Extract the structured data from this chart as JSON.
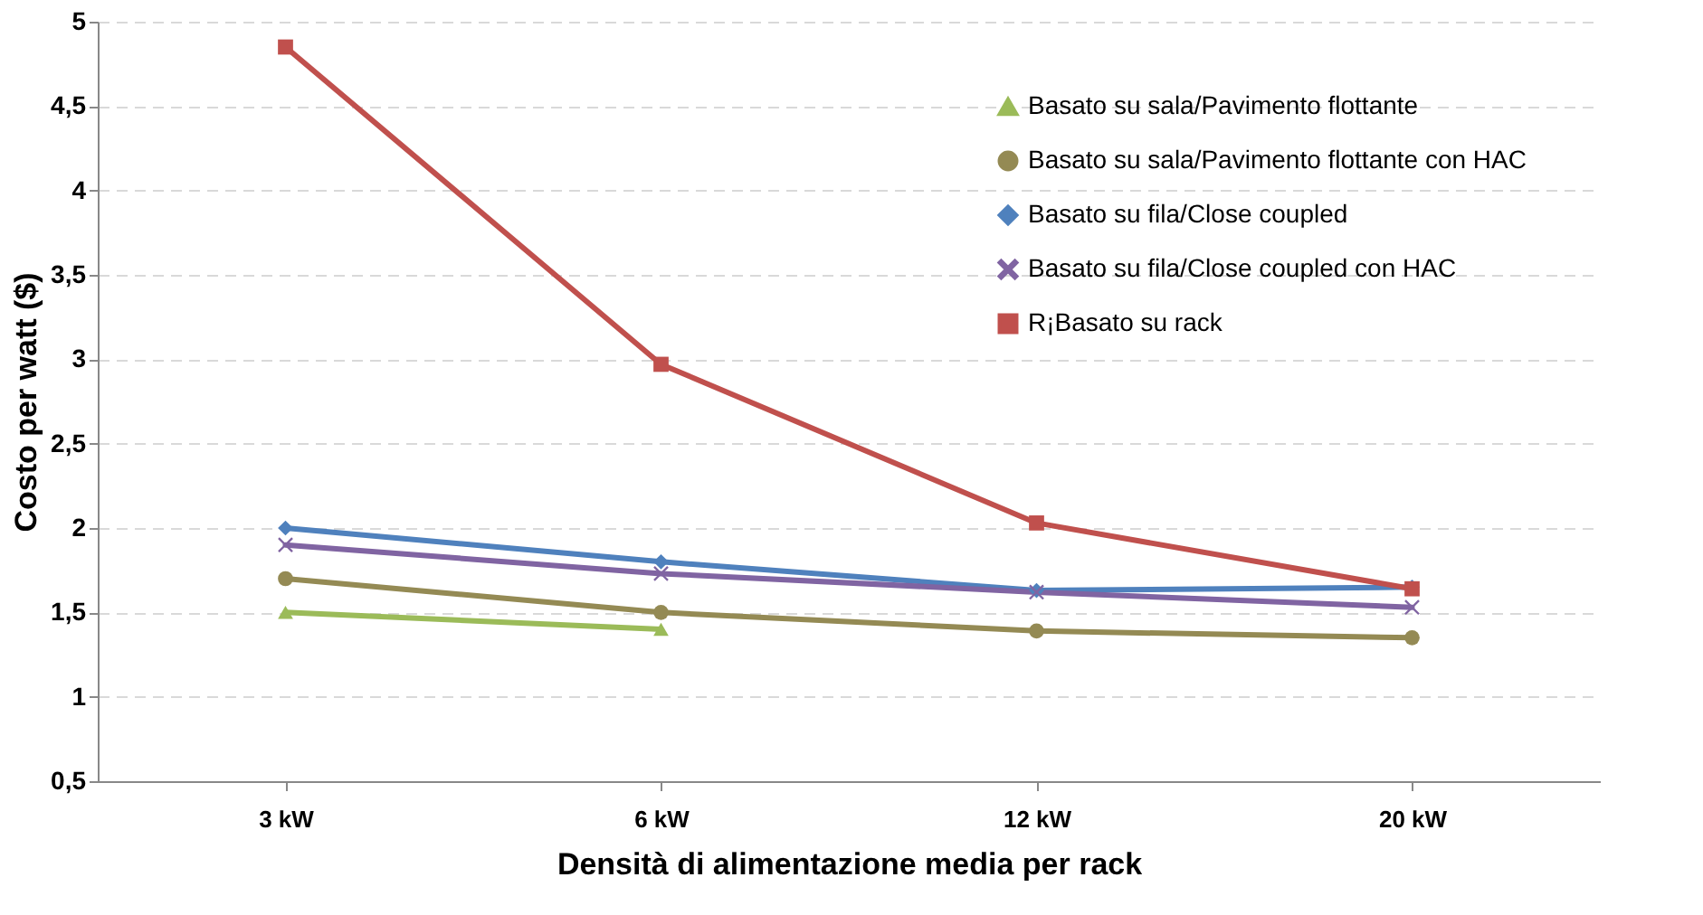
{
  "chart_data": {
    "type": "line",
    "xlabel": "Densità di alimentazione media per rack",
    "ylabel": "Costo per watt ($)",
    "categories": [
      "3 kW",
      "6 kW",
      "12 kW",
      "20 kW"
    ],
    "ylim": [
      0.5,
      5
    ],
    "yticks": [
      {
        "value": 0.5,
        "label": "0,5"
      },
      1,
      {
        "value": 1.5,
        "label": "1,5"
      },
      2,
      {
        "value": 2.5,
        "label": "2,5"
      },
      3,
      {
        "value": 3.5,
        "label": "3,5"
      },
      4,
      {
        "value": 4.5,
        "label": "4,5"
      },
      5
    ],
    "grid": "y",
    "legend": "top right",
    "line_style": "solid",
    "series": [
      {
        "name": "Basato su sala/Pavimento flottante",
        "color": "#9bbb59",
        "marker": "triangle",
        "values": [
          1.5,
          1.4,
          null,
          null
        ]
      },
      {
        "name": "Basato su sala/Pavimento flottante con HAC",
        "color": "#948a54",
        "marker": "circle",
        "values": [
          1.7,
          1.5,
          1.39,
          1.35
        ]
      },
      {
        "name": "Basato su fila/Close coupled",
        "color": "#4f81bd",
        "marker": "diamond",
        "values": [
          2.0,
          1.8,
          1.63,
          1.65
        ]
      },
      {
        "name": "Basato su fila/Close coupled con HAC",
        "color": "#8064a2",
        "marker": "cross",
        "values": [
          1.9,
          1.73,
          1.62,
          1.53
        ]
      },
      {
        "name": "R¡Basato su rack",
        "color": "#c0504d",
        "marker": "square",
        "values": [
          4.85,
          2.97,
          2.03,
          1.64
        ]
      }
    ]
  }
}
